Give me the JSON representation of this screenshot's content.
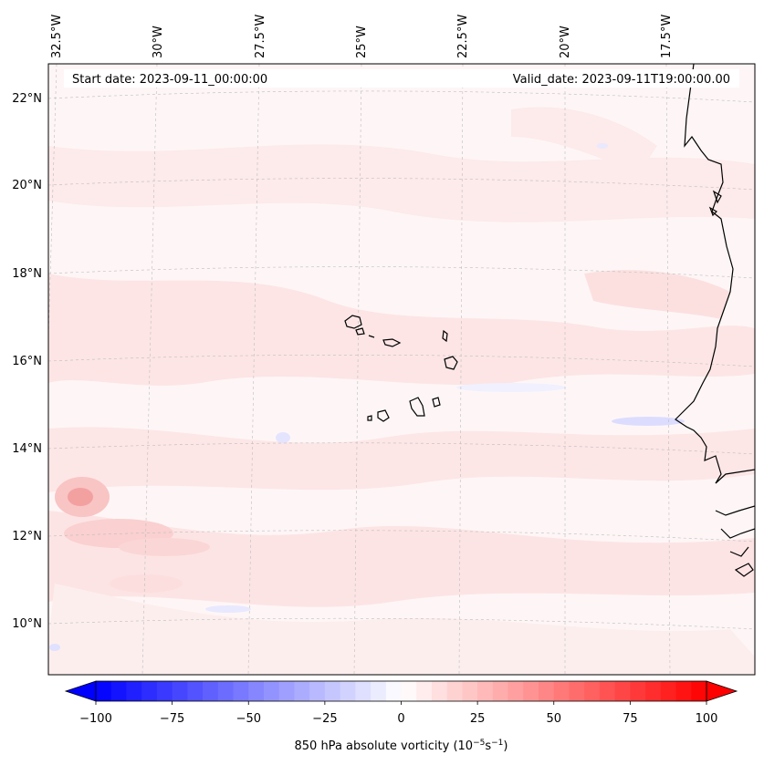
{
  "header": {
    "start_date": "Start date: 2023-09-11_00:00:00",
    "valid_date": "Valid_date: 2023-09-11T19:00:00.00"
  },
  "map": {
    "projection": "lambert-conformal",
    "lon_labels": [
      "32.5°W",
      "30°W",
      "27.5°W",
      "25°W",
      "22.5°W",
      "20°W",
      "17.5°W"
    ],
    "lat_labels": [
      "22°N",
      "20°N",
      "18°N",
      "16°N",
      "14°N",
      "12°N",
      "10°N"
    ],
    "field": "850 hPa absolute vorticity",
    "colors": {
      "positive": "#ff0000",
      "negative": "#0000ff",
      "zero": "#ffffff"
    }
  },
  "colorbar": {
    "ticks": [
      "−100",
      "−75",
      "−50",
      "−25",
      "0",
      "25",
      "50",
      "75",
      "100"
    ],
    "range": [
      -100,
      100
    ],
    "levels": 40,
    "label": "850 hPa absolute vorticity (10",
    "label_exp1": "−5",
    "label_mid": "s",
    "label_exp2": "−1",
    "label_end": ")"
  }
}
